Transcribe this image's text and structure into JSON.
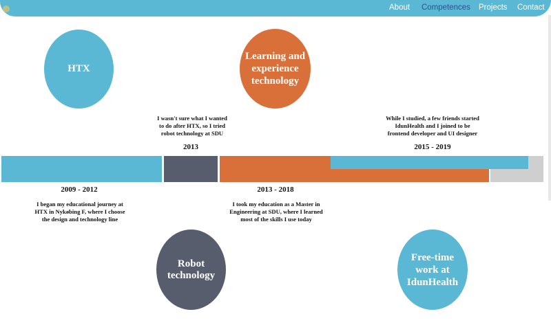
{
  "nav": {
    "items": [
      "About",
      "Competences",
      "Projects",
      "Contact"
    ]
  },
  "circles": {
    "htx": "HTX",
    "learning": "Learning and experience technology",
    "robot": "Robot technology",
    "freetime": "Free-time work at IdunHealth"
  },
  "timeline": {
    "htx": {
      "years": "2009 - 2012",
      "text": "I began my educational journey at HTX in Nykøbing F, where I choose the design and technology line"
    },
    "robot": {
      "years": "2013",
      "text": "I wasn't sure what I wanted to do after HTX, so I tried robot technology at SDU"
    },
    "master": {
      "years": "2013 - 2018",
      "text": "I took my education as a Master in Engineering at SDU, where I learned most of the skills I use today"
    },
    "idun": {
      "years": "2015 - 2019",
      "text": "While I studied, a few friends started IdunHealth and I joined to be frontend developer and UI designer"
    }
  },
  "colors": {
    "blue": "#5bb8d4",
    "orange": "#d9703a",
    "slate": "#575d6d",
    "gray": "#cfcfcf"
  }
}
